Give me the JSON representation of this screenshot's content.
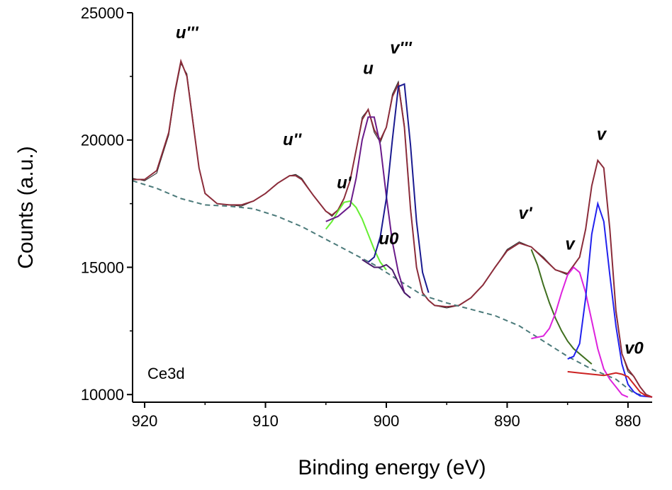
{
  "chart_data": {
    "type": "line",
    "title": "",
    "xlabel": "Binding energy (eV)",
    "ylabel": "Counts (a.u.)",
    "xlim": [
      921,
      878
    ],
    "ylim": [
      9700,
      25000
    ],
    "x_reversed": true,
    "x_ticks": [
      920,
      910,
      900,
      890,
      880
    ],
    "y_ticks": [
      10000,
      15000,
      20000,
      25000
    ],
    "sample_label": "Ce3d",
    "grid": false,
    "legend": "none",
    "peak_labels": [
      {
        "text": "u'''",
        "x": 916.5,
        "y": 24000
      },
      {
        "text": "u''",
        "x": 907.8,
        "y": 19800
      },
      {
        "text": "u'",
        "x": 903.5,
        "y": 18100
      },
      {
        "text": "u",
        "x": 901.5,
        "y": 22600
      },
      {
        "text": "v'''",
        "x": 898.8,
        "y": 23400
      },
      {
        "text": "u0",
        "x": 899.8,
        "y": 15900
      },
      {
        "text": "v'",
        "x": 888.5,
        "y": 16900
      },
      {
        "text": "v",
        "x": 884.8,
        "y": 15700
      },
      {
        "text": "v",
        "x": 882.2,
        "y": 20000
      },
      {
        "text": "v0",
        "x": 879.5,
        "y": 11600
      }
    ],
    "series": [
      {
        "role": "experimental",
        "color": "#222222",
        "x": [
          921,
          920,
          919,
          918,
          917.5,
          917,
          916.5,
          916,
          915.5,
          915,
          914,
          913,
          912,
          911,
          910,
          909,
          908,
          907.5,
          907,
          906,
          905,
          904.5,
          904,
          903.5,
          903,
          902.5,
          902,
          901.5,
          901,
          900.5,
          900,
          899.5,
          899,
          898.5,
          898,
          897.5,
          897,
          896.5,
          896,
          895,
          894,
          893,
          892,
          891,
          890,
          889,
          888,
          887,
          886,
          885,
          884,
          883.5,
          883,
          882.5,
          882,
          881.5,
          881,
          880.5,
          880,
          879.5,
          879,
          878.5,
          878
        ],
        "values": [
          18500,
          18400,
          18700,
          20200,
          21800,
          23000,
          22600,
          20800,
          18900,
          17900,
          17500,
          17450,
          17400,
          17600,
          17900,
          18300,
          18600,
          18650,
          18500,
          17800,
          17200,
          17000,
          17250,
          17700,
          18400,
          19600,
          20900,
          21200,
          20300,
          19900,
          20500,
          21800,
          22300,
          20600,
          17400,
          15000,
          14000,
          13700,
          13500,
          13400,
          13500,
          13800,
          14300,
          15000,
          15700,
          16000,
          15800,
          15400,
          14900,
          14700,
          15400,
          16500,
          18200,
          19200,
          18900,
          16500,
          13200,
          11600,
          10900,
          10700,
          10300,
          10000,
          9900
        ]
      },
      {
        "role": "fit envelope",
        "color": "#8b2c3a",
        "x": [
          921,
          920,
          919,
          918,
          917.5,
          917,
          916.5,
          916,
          915.5,
          915,
          914,
          913,
          912,
          911,
          910,
          909,
          908,
          907.5,
          907,
          906,
          905,
          904.5,
          904,
          903.5,
          903,
          902.5,
          902,
          901.5,
          901,
          900.5,
          900,
          899.5,
          899,
          898.5,
          898,
          897.5,
          897,
          896.5,
          896,
          895,
          894,
          893,
          892,
          891,
          890,
          889,
          888,
          887,
          886,
          885,
          884,
          883.5,
          883,
          882.5,
          882,
          881.5,
          881,
          880.5,
          880,
          879.5,
          879,
          878.5,
          878
        ],
        "values": [
          18450,
          18450,
          18800,
          20300,
          21900,
          23100,
          22500,
          20700,
          18900,
          17900,
          17500,
          17450,
          17450,
          17600,
          17900,
          18300,
          18600,
          18600,
          18450,
          17800,
          17200,
          17050,
          17250,
          17700,
          18400,
          19600,
          20800,
          21200,
          20400,
          20000,
          20500,
          21700,
          22200,
          20500,
          17300,
          15000,
          14000,
          13700,
          13500,
          13450,
          13500,
          13800,
          14300,
          15000,
          15650,
          15950,
          15800,
          15350,
          14900,
          14750,
          15400,
          16500,
          18200,
          19200,
          18900,
          16500,
          13300,
          11600,
          11000,
          10700,
          10300,
          10000,
          9900
        ]
      },
      {
        "role": "background",
        "color": "#4b7a7a",
        "x": [
          921,
          919,
          917,
          915,
          913,
          911,
          909,
          907,
          905,
          903,
          901,
          899,
          897,
          895,
          893,
          891,
          889,
          887,
          885,
          883,
          881,
          879.5,
          878
        ],
        "values": [
          18400,
          18100,
          17700,
          17450,
          17400,
          17300,
          17000,
          16600,
          16100,
          15600,
          15100,
          14500,
          13900,
          13600,
          13350,
          13100,
          12700,
          12100,
          11500,
          11000,
          10600,
          10050,
          9900
        ]
      },
      {
        "role": "component u'",
        "color": "#66ee33",
        "x": [
          905,
          904.5,
          904,
          903.5,
          903,
          902.5,
          902,
          901.5,
          901,
          900.5,
          900
        ],
        "values": [
          16500,
          16800,
          17200,
          17550,
          17600,
          17350,
          16900,
          16300,
          15700,
          15200,
          14900
        ]
      },
      {
        "role": "component u",
        "color": "#6a1b8a",
        "x": [
          905,
          904,
          903,
          902.5,
          902,
          901.5,
          901,
          900.5,
          900,
          899.5,
          899,
          898.5,
          898
        ],
        "values": [
          16800,
          17000,
          17400,
          18500,
          20000,
          20900,
          20900,
          19800,
          17800,
          16000,
          14800,
          14000,
          13800
        ]
      },
      {
        "role": "component v'''",
        "color": "#1a1a90",
        "x": [
          901.5,
          901,
          900.5,
          900,
          899.5,
          899,
          898.5,
          898,
          897.5,
          897,
          896.5
        ],
        "values": [
          15200,
          15400,
          16200,
          17700,
          20000,
          22100,
          22200,
          19800,
          16800,
          14800,
          14000
        ]
      },
      {
        "role": "component u0",
        "color": "#4a1a6a",
        "x": [
          902,
          901.5,
          901,
          900.5,
          900,
          899.5,
          899,
          898.5,
          898
        ],
        "values": [
          15300,
          15150,
          15000,
          15000,
          15100,
          14900,
          14400,
          14000,
          13800
        ]
      },
      {
        "role": "component v'",
        "color": "#3f6f1f",
        "x": [
          888,
          887.5,
          887,
          886.5,
          886,
          885.5,
          885,
          884.5,
          884,
          883.5,
          883
        ],
        "values": [
          15700,
          15100,
          14300,
          13600,
          13000,
          12500,
          12100,
          11800,
          11600,
          11400,
          11200
        ]
      },
      {
        "role": "component v",
        "color": "#dd22dd",
        "x": [
          888,
          887,
          886.5,
          886,
          885.5,
          885,
          884.5,
          884,
          883.5,
          883,
          882.5,
          882,
          881.5,
          881,
          880.5,
          880
        ],
        "values": [
          12200,
          12300,
          12600,
          13200,
          14000,
          14700,
          15000,
          14800,
          14000,
          12900,
          11800,
          11000,
          10600,
          10300,
          10000,
          9900
        ]
      },
      {
        "role": "component v peak",
        "color": "#2222ee",
        "x": [
          885,
          884.5,
          884,
          883.5,
          883,
          882.5,
          882,
          881.5,
          881,
          880.5,
          880,
          879.5,
          879,
          878
        ],
        "values": [
          11400,
          11500,
          12000,
          13800,
          16300,
          17500,
          16800,
          14700,
          12700,
          11200,
          10400,
          10100,
          9950,
          9900
        ]
      },
      {
        "role": "component v0",
        "color": "#cc2222",
        "x": [
          885,
          884,
          883,
          882,
          881.5,
          881,
          880.5,
          880,
          879.5,
          879,
          878.5,
          878
        ],
        "values": [
          10900,
          10850,
          10800,
          10750,
          10800,
          10850,
          10800,
          10700,
          10400,
          10100,
          9950,
          9900
        ]
      }
    ]
  }
}
